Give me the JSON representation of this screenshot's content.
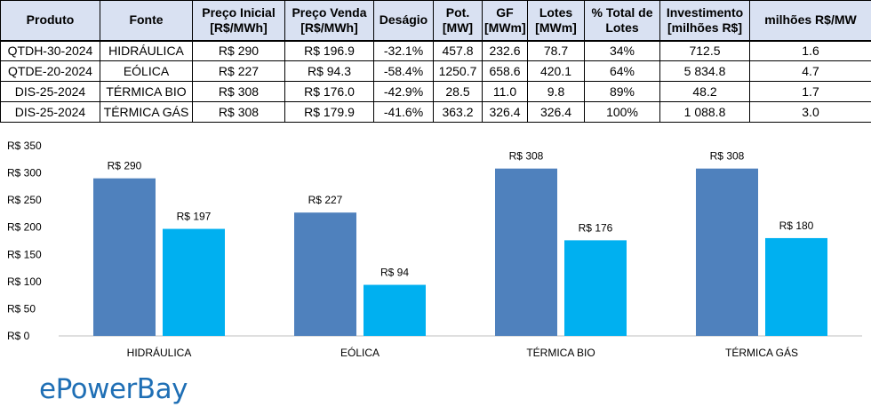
{
  "table": {
    "headers": [
      "Produto",
      "Fonte",
      "Preço Inicial [R$/MWh]",
      "Preço Venda [R$/MWh]",
      "Deságio",
      "Pot. [MW]",
      "GF [MWm]",
      "Lotes [MWm]",
      "% Total de Lotes",
      "Investimento [milhões R$]",
      "milhões R$/MW"
    ],
    "rows": [
      [
        "QTDH-30-2024",
        "HIDRÁULICA",
        "R$ 290",
        "R$ 196.9",
        "-32.1%",
        "457.8",
        "232.6",
        "78.7",
        "34%",
        "712.5",
        "1.6"
      ],
      [
        "QTDE-20-2024",
        "EÓLICA",
        "R$ 227",
        "R$ 94.3",
        "-58.4%",
        "1250.7",
        "658.6",
        "420.1",
        "64%",
        "5 834.8",
        "4.7"
      ],
      [
        "DIS-25-2024",
        "TÉRMICA BIO",
        "R$ 308",
        "R$ 176.0",
        "-42.9%",
        "28.5",
        "11.0",
        "9.8",
        "89%",
        "48.2",
        "1.7"
      ],
      [
        "DIS-25-2024",
        "TÉRMICA GÁS",
        "R$ 308",
        "R$ 179.9",
        "-41.6%",
        "363.2",
        "326.4",
        "326.4",
        "100%",
        "1 088.8",
        "3.0"
      ]
    ]
  },
  "chart_data": {
    "type": "bar",
    "categories": [
      "HIDRÁULICA",
      "EÓLICA",
      "TÉRMICA BIO",
      "TÉRMICA GÁS"
    ],
    "series": [
      {
        "name": "Preço Inicial [R$/MWh]",
        "values": [
          290,
          227,
          308,
          308
        ],
        "labels": [
          "R$ 290",
          "R$ 227",
          "R$ 308",
          "R$ 308"
        ],
        "color": "#4f81bd"
      },
      {
        "name": "Preço Venda [R$/MWh]",
        "values": [
          197,
          94,
          176,
          180
        ],
        "labels": [
          "R$  197",
          "R$  94",
          "R$  176",
          "R$  180"
        ],
        "color": "#00b0f0"
      }
    ],
    "ylim": [
      0,
      350
    ],
    "yticks": [
      0,
      50,
      100,
      150,
      200,
      250,
      300,
      350
    ],
    "ytick_labels": [
      "R$ 0",
      "R$ 50",
      "R$ 100",
      "R$ 150",
      "R$ 200",
      "R$ 250",
      "R$ 300",
      "R$ 350"
    ],
    "grid": false,
    "legend_position": "bottom"
  },
  "brand": {
    "logo_text": "ePowerBay",
    "color": "#1f6fb5"
  }
}
